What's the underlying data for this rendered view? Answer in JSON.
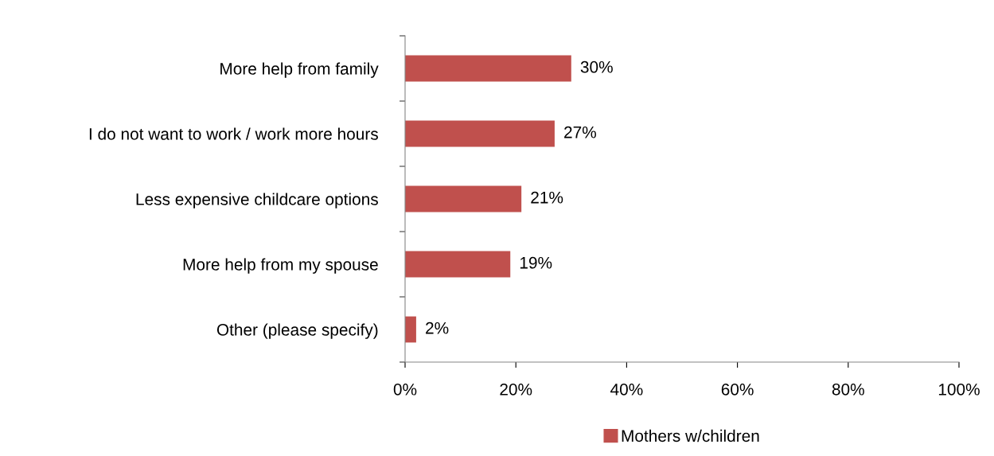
{
  "chart_data": {
    "type": "bar",
    "orientation": "horizontal",
    "categories": [
      "More help from family",
      "I do not want to work / work more hours",
      "Less expensive childcare options",
      "More help from my spouse",
      "Other (please specify)"
    ],
    "series": [
      {
        "name": "Mothers w/children",
        "color": "#c0504d",
        "values": [
          30,
          27,
          21,
          19,
          2
        ],
        "value_labels": [
          "30%",
          "27%",
          "21%",
          "19%",
          "2%"
        ]
      }
    ],
    "xlim": [
      0,
      100
    ],
    "xticks": [
      {
        "value": 0,
        "label": "0%"
      },
      {
        "value": 20,
        "label": "20%"
      },
      {
        "value": 40,
        "label": "40%"
      },
      {
        "value": 60,
        "label": "60%"
      },
      {
        "value": 80,
        "label": "80%"
      },
      {
        "value": 100,
        "label": "100%"
      }
    ],
    "grid": false,
    "legend": "bottom"
  }
}
